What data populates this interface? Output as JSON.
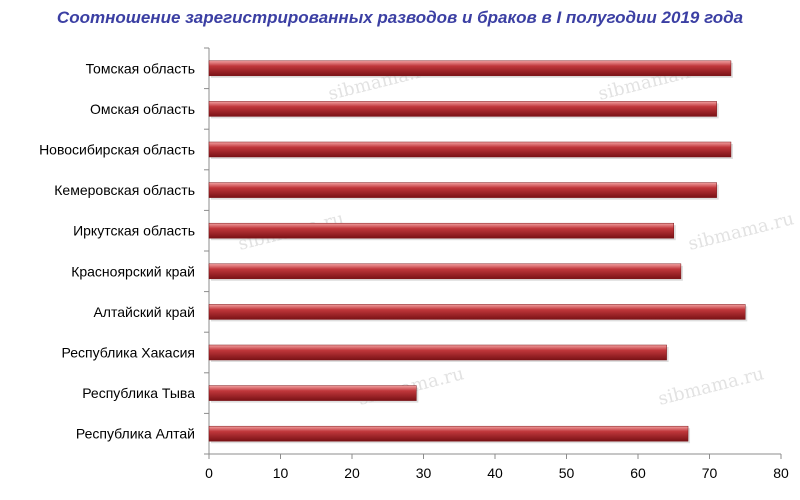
{
  "chart_data": {
    "type": "bar",
    "orientation": "horizontal",
    "title": "Соотношение зарегистрированных разводов и браков в I полугодии 2019 года",
    "categories": [
      "Томская область",
      "Омская область",
      "Новосибирская область",
      "Кемеровская область",
      "Иркутская область",
      "Красноярский край",
      "Алтайский край",
      "Республика Хакасия",
      "Республика Тыва",
      "Республика Алтай"
    ],
    "values": [
      73,
      71,
      73,
      71,
      65,
      66,
      75,
      64,
      29,
      67
    ],
    "xlim": [
      0,
      80
    ],
    "xticks": [
      0,
      10,
      20,
      30,
      40,
      50,
      60,
      70,
      80
    ],
    "grid": false,
    "legend": "none",
    "bar_color": "#c0373b",
    "bar_highlight": "#f3a2a2",
    "bar_shadow": "#7a1216"
  },
  "watermark": "sibmama.ru"
}
